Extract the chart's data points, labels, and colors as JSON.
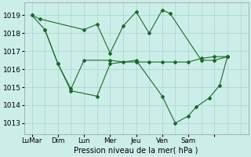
{
  "background_color": "#cceee8",
  "grid_color": "#aad4cc",
  "line_color": "#1a6b2a",
  "title": "Pression niveau de la mer( hPa )",
  "yticks": [
    1013,
    1014,
    1015,
    1016,
    1017,
    1018,
    1019
  ],
  "ylim": [
    1012.4,
    1019.7
  ],
  "xlim": [
    -0.3,
    8.3
  ],
  "xtick_positions": [
    0,
    1,
    2,
    3,
    4,
    5,
    6,
    7
  ],
  "xtick_labels": [
    "LuMar",
    "Dim",
    "Lun",
    "Mer",
    "Jeu",
    "Ven",
    "Sam",
    ""
  ],
  "vlines": [
    0,
    1,
    2,
    3,
    4,
    5,
    6,
    7
  ],
  "series1_x": [
    0.0,
    0.3,
    2.0,
    2.5,
    3.0,
    3.5,
    4.0,
    4.5,
    5.0,
    5.3,
    6.5,
    7.0,
    7.5
  ],
  "series1_y": [
    1019.0,
    1018.8,
    1018.2,
    1018.5,
    1016.9,
    1018.4,
    1019.2,
    1018.0,
    1019.3,
    1019.1,
    1016.5,
    1016.5,
    1016.7
  ],
  "series2_x": [
    0.0,
    0.5,
    1.0,
    1.5,
    2.0,
    3.0,
    3.5,
    4.0,
    4.5,
    5.0,
    5.5,
    6.0,
    6.5,
    7.0,
    7.5
  ],
  "series2_y": [
    1019.0,
    1018.2,
    1016.3,
    1014.9,
    1016.5,
    1016.5,
    1016.4,
    1016.4,
    1016.4,
    1016.4,
    1016.4,
    1016.4,
    1016.6,
    1016.7,
    1016.7
  ],
  "series3_x": [
    0.5,
    1.0,
    1.5,
    2.5,
    3.0,
    4.0,
    5.0,
    5.5,
    6.0,
    6.3,
    6.8,
    7.2,
    7.5
  ],
  "series3_y": [
    1018.2,
    1016.3,
    1014.8,
    1014.5,
    1016.3,
    1016.5,
    1014.5,
    1013.0,
    1013.4,
    1013.9,
    1014.4,
    1015.1,
    1016.7
  ]
}
